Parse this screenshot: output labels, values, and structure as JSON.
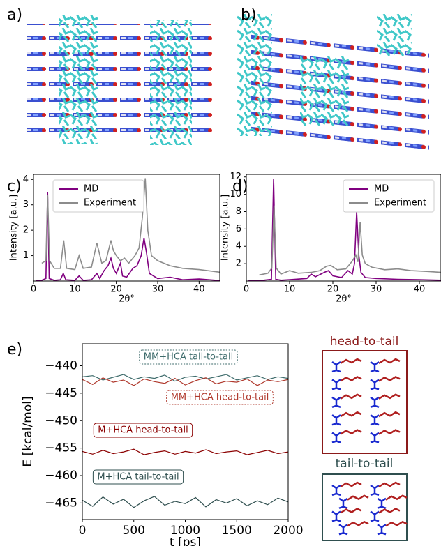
{
  "panel_labels": [
    "a)",
    "b)",
    "c)",
    "d)",
    "e)"
  ],
  "schematics": [
    {
      "title": "head-to-tail",
      "color": "#8b1a1a"
    },
    {
      "title": "tail-to-tail",
      "color": "#2f4f4f"
    }
  ],
  "chart_data": [
    {
      "type": "line",
      "xlabel": "2θ°",
      "ylabel": "Intensity [a.u.]",
      "xlim": [
        0,
        45
      ],
      "xticks": [
        0,
        10,
        20,
        30,
        40
      ],
      "ylim": [
        0,
        4.2
      ],
      "yticks": [
        1,
        2,
        3,
        4
      ],
      "legend": "upper center",
      "series": [
        {
          "name": "MD",
          "color": "#800080",
          "x": [
            0.5,
            2,
            3,
            3.4,
            3.8,
            5,
            6.5,
            7.2,
            7.8,
            10,
            11,
            12,
            14,
            15.3,
            16,
            17,
            18,
            18.7,
            19.3,
            20,
            21,
            21.5,
            22.5,
            24,
            25,
            26,
            26.7,
            27.3,
            28,
            30,
            33,
            36,
            40,
            45
          ],
          "values": [
            0.02,
            0.03,
            0.1,
            3.5,
            0.1,
            0.03,
            0.05,
            0.3,
            0.05,
            0.03,
            0.2,
            0.03,
            0.05,
            0.3,
            0.1,
            0.4,
            0.6,
            0.9,
            0.5,
            0.3,
            0.7,
            0.2,
            0.15,
            0.5,
            0.6,
            1.0,
            1.7,
            1.1,
            0.3,
            0.1,
            0.15,
            0.05,
            0.08,
            0.02
          ]
        },
        {
          "name": "Experiment",
          "color": "#8c8c8c",
          "x": [
            2,
            3,
            3.4,
            3.9,
            5,
            6.5,
            7.3,
            8,
            10,
            11,
            12,
            14,
            15.3,
            16.5,
            17.5,
            18.7,
            19.3,
            20,
            21,
            22,
            23,
            24.5,
            25.5,
            26.3,
            27,
            27.6,
            28.5,
            30,
            33,
            36,
            40,
            45
          ],
          "values": [
            0.7,
            0.8,
            3.4,
            0.8,
            0.5,
            0.5,
            1.6,
            0.5,
            0.45,
            1.0,
            0.5,
            0.55,
            1.5,
            0.7,
            0.8,
            1.6,
            1.2,
            1.0,
            0.8,
            0.9,
            0.7,
            1.0,
            1.3,
            2.5,
            4.05,
            2.0,
            1.0,
            0.8,
            0.6,
            0.5,
            0.45,
            0.35
          ]
        }
      ]
    },
    {
      "type": "line",
      "xlabel": "2θ°",
      "ylabel": "Intensity [a.u.]",
      "xlim": [
        0,
        45
      ],
      "xticks": [
        0,
        10,
        20,
        30,
        40
      ],
      "ylim": [
        0,
        12.3
      ],
      "yticks": [
        2,
        4,
        6,
        8,
        10,
        12
      ],
      "legend": "upper right",
      "series": [
        {
          "name": "MD",
          "color": "#800080",
          "x": [
            0.5,
            4,
            5.8,
            6.3,
            6.8,
            8,
            10,
            14,
            15,
            16,
            18,
            19,
            20,
            22,
            23.5,
            24.5,
            25,
            25.5,
            26,
            26.5,
            27.5,
            30,
            35,
            40,
            45
          ],
          "values": [
            0.1,
            0.1,
            0.2,
            11.8,
            0.2,
            0.1,
            0.15,
            0.3,
            0.8,
            0.5,
            1.0,
            1.2,
            0.6,
            0.4,
            1.2,
            0.8,
            2.0,
            8.0,
            3.0,
            1.0,
            0.4,
            0.3,
            0.2,
            0.15,
            0.1
          ]
        },
        {
          "name": "Experiment",
          "color": "#8c8c8c",
          "x": [
            3,
            5,
            5.9,
            6.4,
            6.9,
            8,
            10,
            12,
            15,
            17,
            18.5,
            19.5,
            21,
            23,
            24.5,
            25.3,
            25.8,
            26.3,
            26.8,
            27.5,
            29,
            32,
            35,
            38,
            42,
            45
          ],
          "values": [
            0.7,
            0.9,
            1.5,
            8.7,
            1.5,
            0.8,
            1.2,
            0.9,
            1.0,
            1.2,
            1.7,
            1.8,
            1.3,
            1.4,
            2.3,
            3.0,
            2.2,
            6.8,
            3.0,
            2.0,
            1.6,
            1.3,
            1.4,
            1.2,
            1.1,
            1.0
          ]
        }
      ]
    },
    {
      "type": "line",
      "xlabel": "t [ps]",
      "ylabel": "E [kcal/mol]",
      "xlim": [
        0,
        2000
      ],
      "xticks": [
        0,
        500,
        1000,
        1500,
        2000
      ],
      "ylim": [
        -468,
        -436
      ],
      "yticks": [
        {
          "value": -440,
          "label": "−440"
        },
        {
          "value": -445,
          "label": "−445"
        },
        {
          "value": -450,
          "label": "−450"
        },
        {
          "value": -455,
          "label": "−455"
        },
        {
          "value": -460,
          "label": "−460"
        },
        {
          "value": -465,
          "label": "−465"
        }
      ],
      "x": [
        0,
        100,
        200,
        300,
        400,
        500,
        600,
        700,
        800,
        900,
        1000,
        1100,
        1200,
        1300,
        1400,
        1500,
        1600,
        1700,
        1800,
        1900,
        2000
      ],
      "series": [
        {
          "name": "MM+HCA tail-to-tail",
          "color": "#3d6b6b",
          "values": [
            -442.0,
            -441.8,
            -442.6,
            -442.1,
            -441.6,
            -442.5,
            -442.0,
            -442.3,
            -441.7,
            -442.8,
            -442.1,
            -441.9,
            -442.4,
            -442.0,
            -441.6,
            -442.6,
            -442.2,
            -441.8,
            -442.5,
            -442.0,
            -442.3
          ]
        },
        {
          "name": "MM+HCA head-to-tail",
          "color": "#b03a2e",
          "values": [
            -442.5,
            -443.4,
            -442.2,
            -443.0,
            -442.6,
            -443.6,
            -442.4,
            -442.9,
            -443.2,
            -442.3,
            -443.5,
            -442.7,
            -442.2,
            -443.3,
            -442.8,
            -443.0,
            -442.4,
            -443.6,
            -442.6,
            -442.9,
            -442.5
          ]
        },
        {
          "name": "M+HCA head-to-tail",
          "color": "#8b0000",
          "values": [
            -455.6,
            -456.1,
            -455.4,
            -456.0,
            -455.7,
            -455.2,
            -456.2,
            -455.8,
            -455.5,
            -456.1,
            -455.6,
            -455.9,
            -455.3,
            -456.0,
            -455.7,
            -455.5,
            -456.2,
            -455.8,
            -455.4,
            -456.0,
            -455.7
          ]
        },
        {
          "name": "M+HCA tail-to-tail",
          "color": "#2f4f4f",
          "values": [
            -464.5,
            -465.6,
            -463.9,
            -465.2,
            -464.3,
            -465.8,
            -464.6,
            -463.8,
            -465.4,
            -464.7,
            -465.1,
            -464.0,
            -465.7,
            -464.4,
            -465.0,
            -464.2,
            -465.5,
            -464.6,
            -465.3,
            -464.1,
            -464.8
          ]
        }
      ]
    }
  ]
}
